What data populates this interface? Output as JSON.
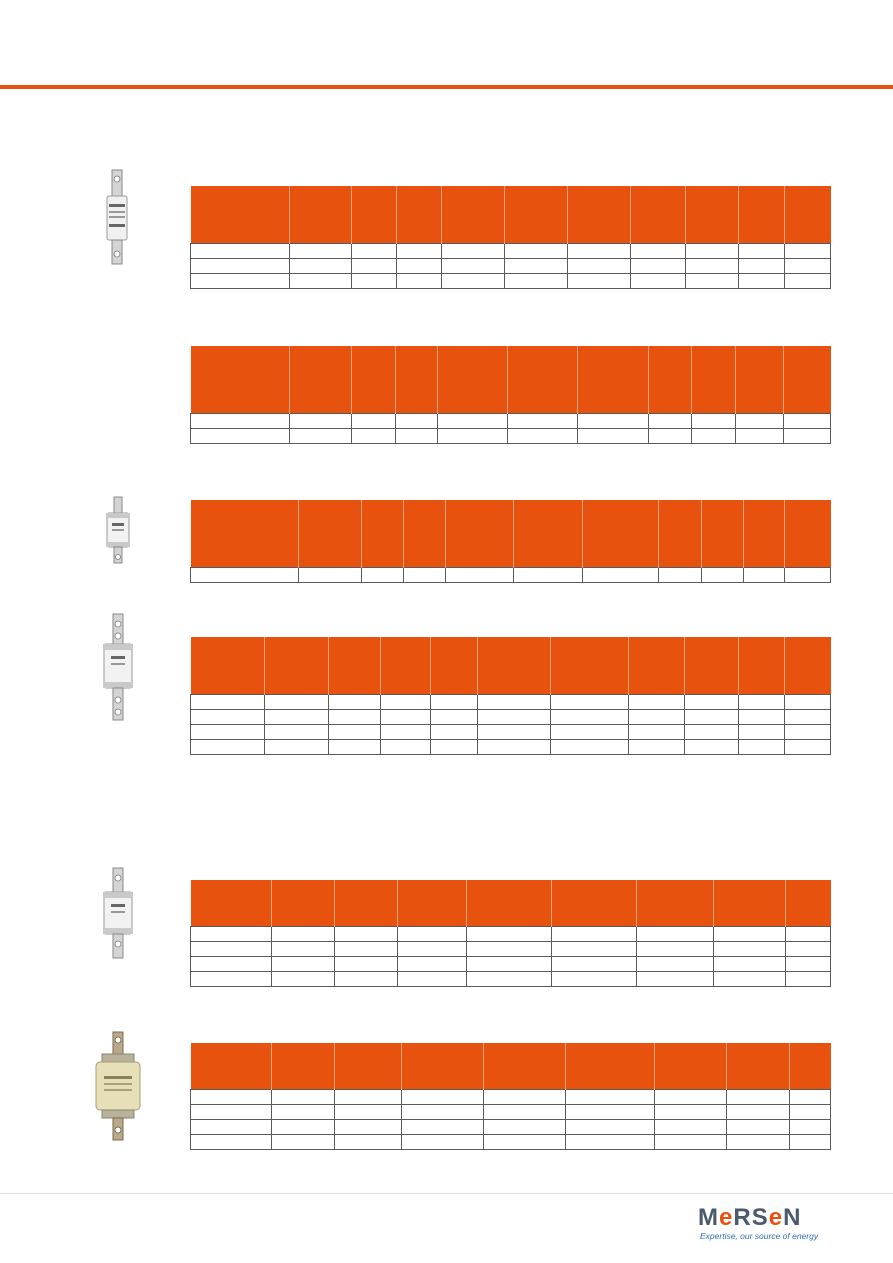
{
  "theme": {
    "accent": "#e8520f",
    "brand_text": "#4a5a6e",
    "tagline": "#2f6db0"
  },
  "logo": {
    "word_left": "M",
    "word_accent_1": "e",
    "word_mid": "RS",
    "word_accent_2": "e",
    "word_right": "N",
    "tagline": "Expertise, our source of energy"
  },
  "fuse_photos": [
    {
      "icon": "fuse-link-bolted-small-icon"
    },
    {
      "icon": "fuse-link-offset-tag-icon"
    },
    {
      "icon": "fuse-link-offset-tag-long-icon"
    },
    {
      "icon": "fuse-link-centre-tag-icon"
    },
    {
      "icon": "fuse-link-ceramic-body-icon"
    }
  ],
  "tables": [
    {
      "columns": 11,
      "rows": 3
    },
    {
      "columns": 11,
      "rows": 2
    },
    {
      "columns": 11,
      "rows": 1
    },
    {
      "columns": 11,
      "rows": 4
    },
    {
      "columns": 9,
      "rows": 4
    },
    {
      "columns": 9,
      "rows": 4
    }
  ]
}
